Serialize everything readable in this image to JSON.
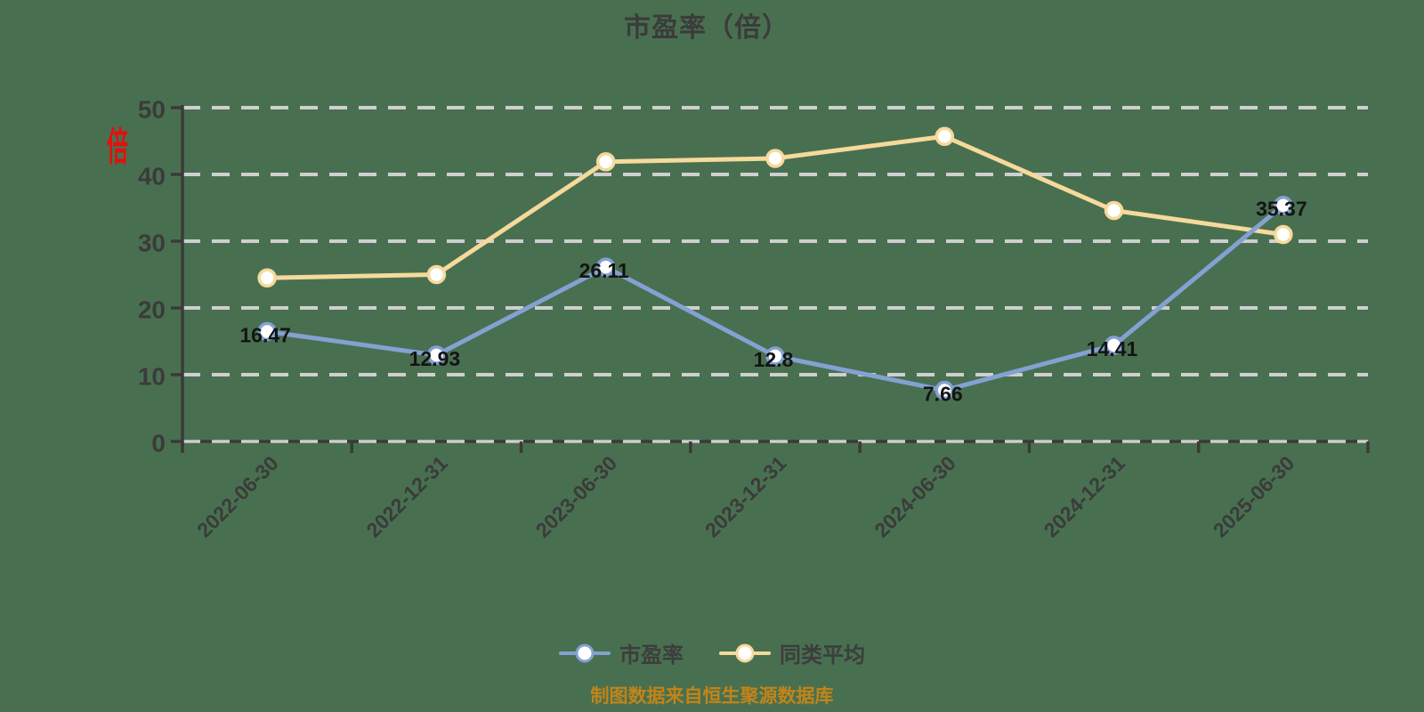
{
  "title": "市盈率（倍）",
  "y_axis_unit": "倍",
  "source_note": "制图数据来自恒生聚源数据库",
  "legend": {
    "items": [
      {
        "label": "市盈率"
      },
      {
        "label": "同类平均"
      }
    ]
  },
  "colors": {
    "background": "#487050",
    "axis": "#3a3a3a",
    "grid": "#cfcfcf",
    "axis_text": "#3b3b3b",
    "point_label": "#141414",
    "series_pe": "#84a1d3",
    "series_avg": "#f6d99b",
    "marker_fill": "#ffffff",
    "source_text": "#c28418",
    "unit_text": "#e60e0e"
  },
  "chart_data": {
    "type": "line",
    "title": "市盈率（倍）",
    "categories": [
      "2022-06-30",
      "2022-12-31",
      "2023-06-30",
      "2023-12-31",
      "2024-06-30",
      "2024-12-31",
      "2025-06-30"
    ],
    "series": [
      {
        "name": "市盈率",
        "color": "#84a1d3",
        "values": [
          16.47,
          12.93,
          26.11,
          12.8,
          7.66,
          14.41,
          35.37
        ],
        "labels": [
          "16.47",
          "12.93",
          "26.11",
          "12.8",
          "7.66",
          "14.41",
          "35.37"
        ],
        "show_labels": true
      },
      {
        "name": "同类平均",
        "color": "#f6d99b",
        "values": [
          24.5,
          25.0,
          41.9,
          42.4,
          45.7,
          34.6,
          31.0
        ],
        "labels": [],
        "show_labels": false
      }
    ],
    "ylim": [
      0,
      50
    ],
    "yticks": [
      0,
      10,
      20,
      30,
      40,
      50
    ],
    "grid": "dashed",
    "legend_position": "bottom"
  }
}
